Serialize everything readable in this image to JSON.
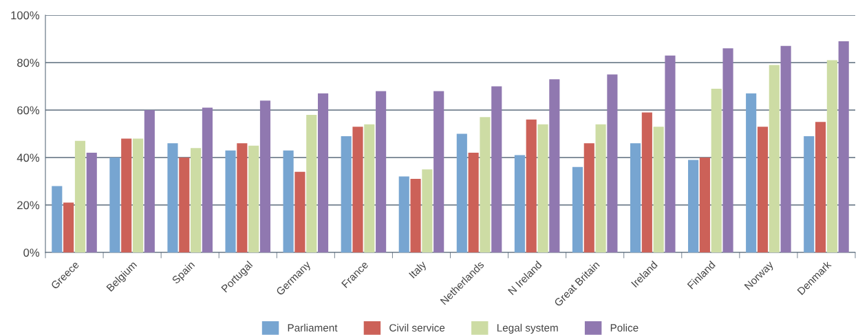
{
  "chart_data": {
    "type": "bar",
    "categories": [
      "Greece",
      "Belgium",
      "Spain",
      "Portugal",
      "Germany",
      "France",
      "Italy",
      "Netherlands",
      "N Ireland",
      "Great Britain",
      "Ireland",
      "Finland",
      "Norway",
      "Denmark"
    ],
    "series": [
      {
        "name": "Parliament",
        "color": "#77a5d1",
        "values": [
          28,
          40,
          46,
          43,
          43,
          49,
          32,
          50,
          41,
          36,
          46,
          39,
          67,
          49
        ]
      },
      {
        "name": "Civil service",
        "color": "#cc6158",
        "values": [
          21,
          48,
          40,
          46,
          34,
          53,
          31,
          42,
          56,
          46,
          59,
          40,
          53,
          55
        ]
      },
      {
        "name": "Legal system",
        "color": "#cddca4",
        "values": [
          47,
          48,
          44,
          45,
          58,
          54,
          35,
          57,
          54,
          54,
          53,
          69,
          79,
          81
        ]
      },
      {
        "name": "Police",
        "color": "#9078b0",
        "values": [
          42,
          60,
          61,
          64,
          67,
          68,
          68,
          70,
          73,
          75,
          83,
          86,
          87,
          89
        ]
      }
    ],
    "ylim": [
      0,
      100
    ],
    "yticks": [
      {
        "value": 0,
        "label": "0%"
      },
      {
        "value": 20,
        "label": "20%"
      },
      {
        "value": 40,
        "label": "40%"
      },
      {
        "value": 60,
        "label": "60%"
      },
      {
        "value": 80,
        "label": "80%"
      },
      {
        "value": 100,
        "label": "100%"
      }
    ],
    "grid": "y",
    "legend": "bottom"
  }
}
